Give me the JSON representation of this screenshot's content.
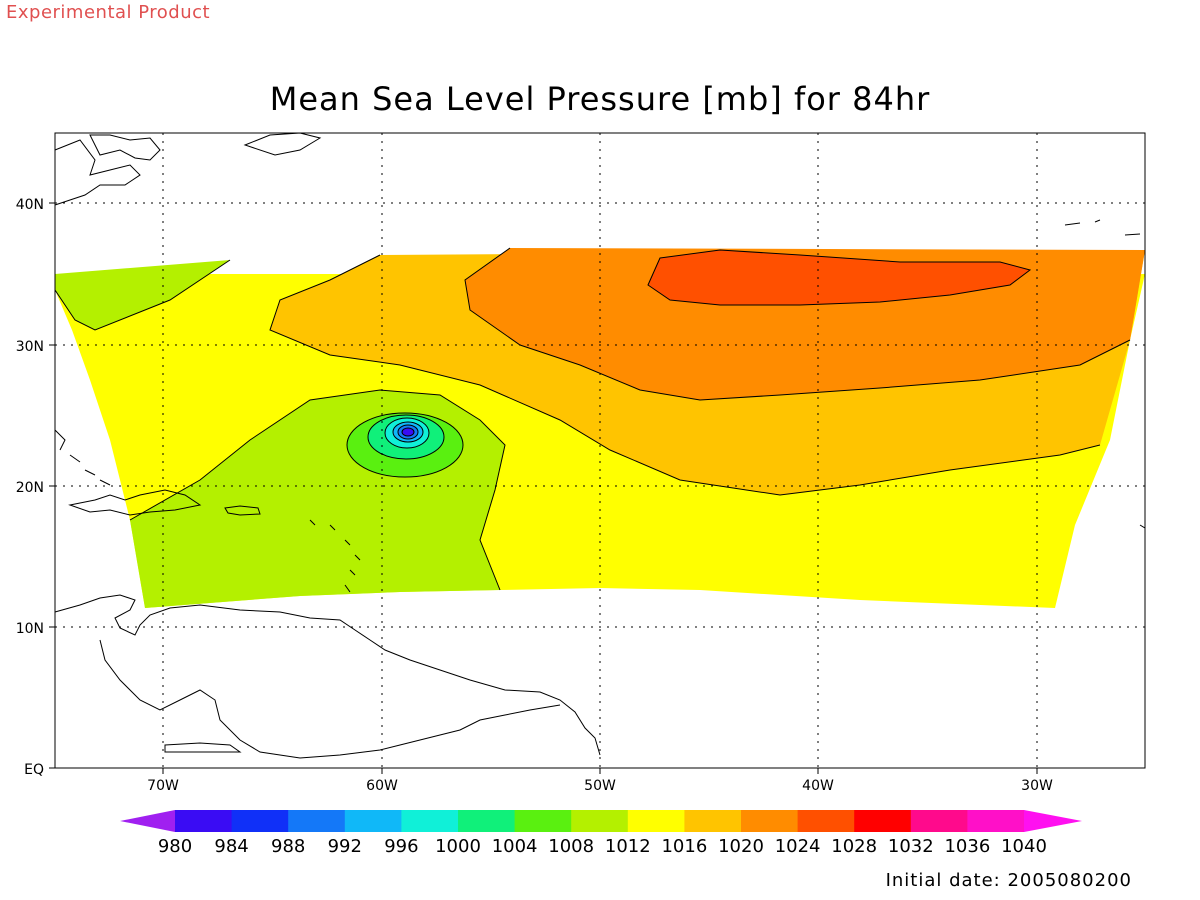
{
  "header": {
    "product_label": "Experimental Product",
    "title": "Mean Sea Level Pressure [mb] for 84hr"
  },
  "axes": {
    "lat_labels": [
      "40N",
      "30N",
      "20N",
      "10N",
      "EQ"
    ],
    "lon_labels": [
      "70W",
      "60W",
      "50W",
      "40W",
      "30W"
    ]
  },
  "colorbar": {
    "levels": [
      "980",
      "984",
      "988",
      "992",
      "996",
      "1000",
      "1004",
      "1008",
      "1012",
      "1016",
      "1020",
      "1024",
      "1028",
      "1032",
      "1036",
      "1040"
    ],
    "colors": [
      "#a020f0",
      "#3a0cf4",
      "#1030f8",
      "#1478f8",
      "#10b8f8",
      "#10f0d8",
      "#10f07a",
      "#5af010",
      "#b4f000",
      "#ffff00",
      "#ffc400",
      "#ff8c00",
      "#ff5000",
      "#ff0000",
      "#ff0a8c",
      "#ff10c8",
      "#ff10f0"
    ]
  },
  "map_colors": {
    "c1008": "#b4f000",
    "c1012": "#ffff00",
    "c1016": "#ffc400",
    "c1020": "#ff8c00",
    "c1024": "#ff5000",
    "c1004": "#5af010",
    "c1000": "#10f07a",
    "c996": "#10f0d8",
    "c992": "#10b8f8",
    "c988": "#1478f8",
    "c984": "#1030f8",
    "c980": "#3a0cf4"
  },
  "footer": {
    "initial_date": "Initial date: 2005080200"
  }
}
